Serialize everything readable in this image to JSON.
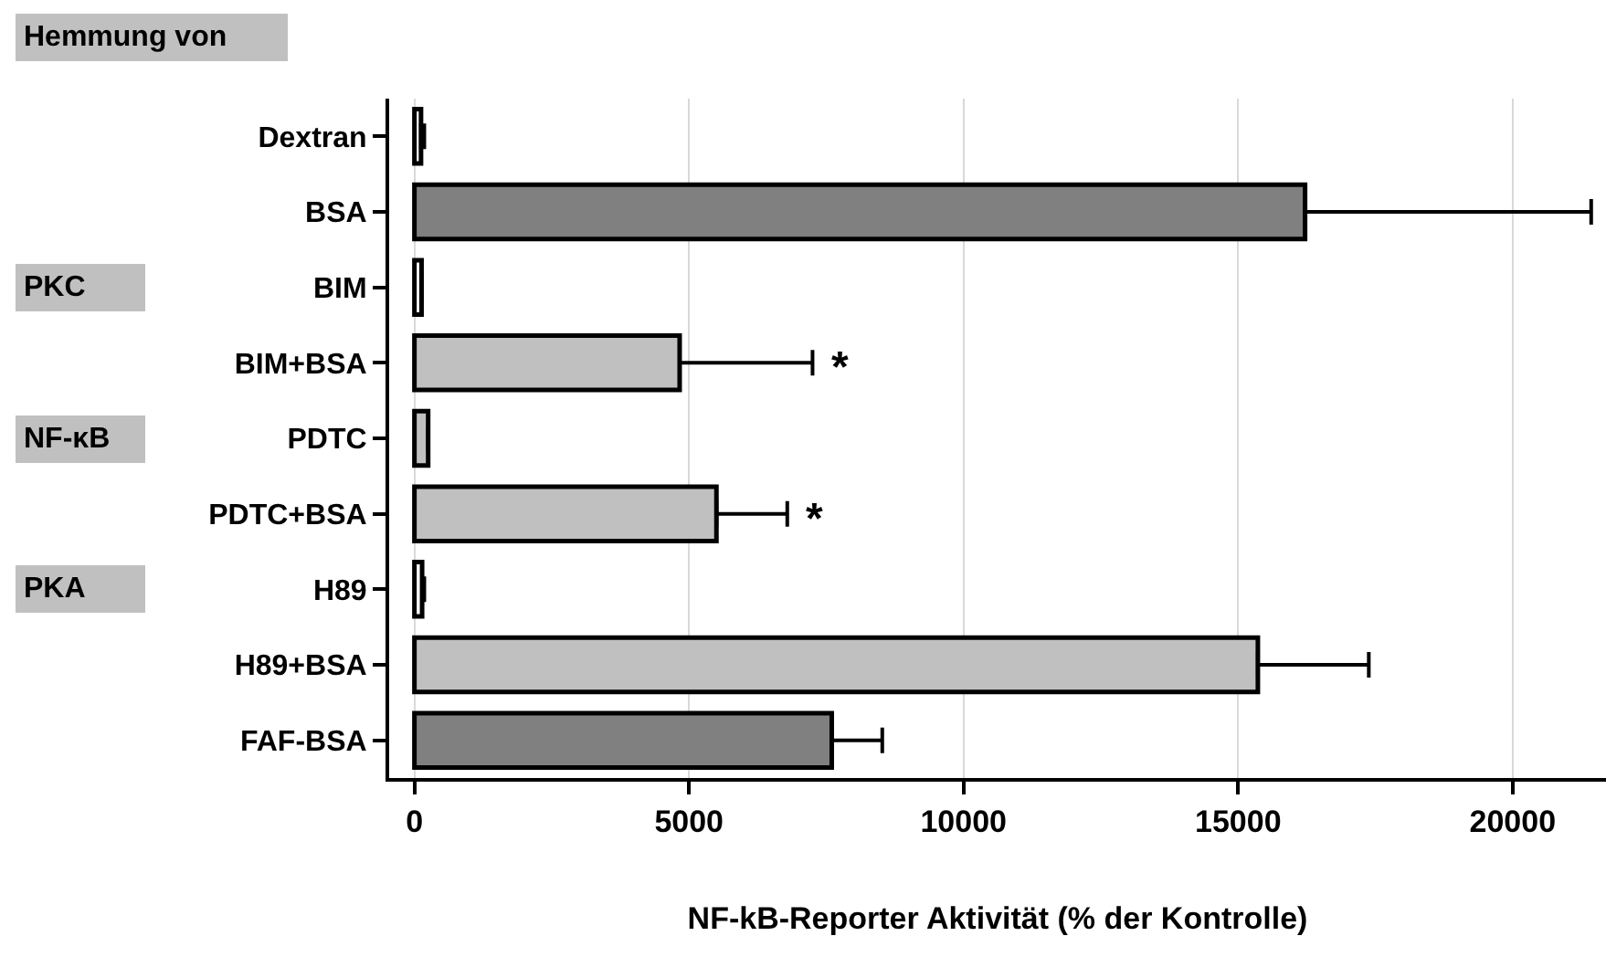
{
  "chart_data": {
    "type": "bar",
    "orientation": "horizontal",
    "xlabel": "NF-kB-Reporter Aktivität (% der Kontrolle)",
    "categories": [
      "Dextran",
      "BSA",
      "BIM",
      "BIM+BSA",
      "PDTC",
      "PDTC+BSA",
      "H89",
      "H89+BSA",
      "FAF-BSA"
    ],
    "values": [
      120,
      16220,
      130,
      4830,
      250,
      5500,
      140,
      15360,
      7600
    ],
    "colors": [
      "#ffffff",
      "#808080",
      "#ffffff",
      "#c0c0c0",
      "#c0c0c0",
      "#c0c0c0",
      "#ffffff",
      "#c0c0c0",
      "#808080"
    ],
    "errors": [
      [
        120,
        180
      ],
      [
        16220,
        21430
      ],
      null,
      [
        4830,
        7250
      ],
      null,
      [
        5500,
        6790
      ],
      [
        140,
        180
      ],
      [
        15360,
        17380
      ],
      [
        7600,
        8520
      ]
    ],
    "xlim": [
      -460,
      21700
    ],
    "xticks": [
      0,
      5000,
      10000,
      15000,
      20000
    ],
    "grid": "x",
    "annotations": [
      "Hemmung von",
      "PKC",
      "NF-κB",
      "PKA",
      "*",
      "*"
    ]
  }
}
